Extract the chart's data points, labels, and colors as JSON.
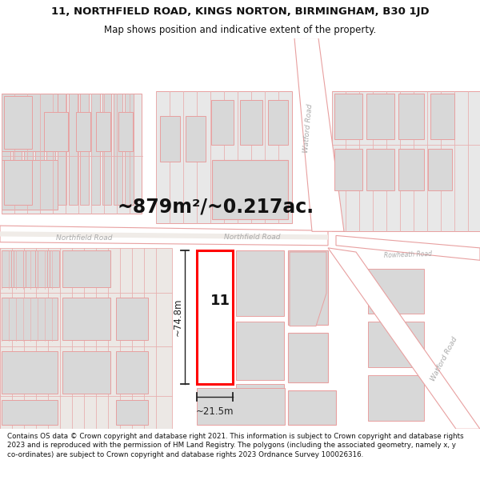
{
  "title": "11, NORTHFIELD ROAD, KINGS NORTON, BIRMINGHAM, B30 1JD",
  "subtitle": "Map shows position and indicative extent of the property.",
  "area_text": "~879m²/~0.217ac.",
  "width_label": "~21.5m",
  "height_label": "~74.8m",
  "property_number": "11",
  "footer_text": "Contains OS data © Crown copyright and database right 2021. This information is subject to Crown copyright and database rights 2023 and is reproduced with the permission of HM Land Registry. The polygons (including the associated geometry, namely x, y co-ordinates) are subject to Crown copyright and database rights 2023 Ordnance Survey 100026316.",
  "bg_color": "#ffffff",
  "map_bg": "#f7f3f0",
  "property_fill": "#ffffff",
  "property_edge": "#ff0000",
  "building_fill": "#d8d8d8",
  "building_edge": "#e8a0a0",
  "road_fill": "#ffffff",
  "road_edge": "#e8a0a0",
  "title_color": "#111111",
  "footer_color": "#111111",
  "measure_color": "#222222",
  "road_label_color": "#aaaaaa",
  "street_line_color": "#e8b0b0"
}
